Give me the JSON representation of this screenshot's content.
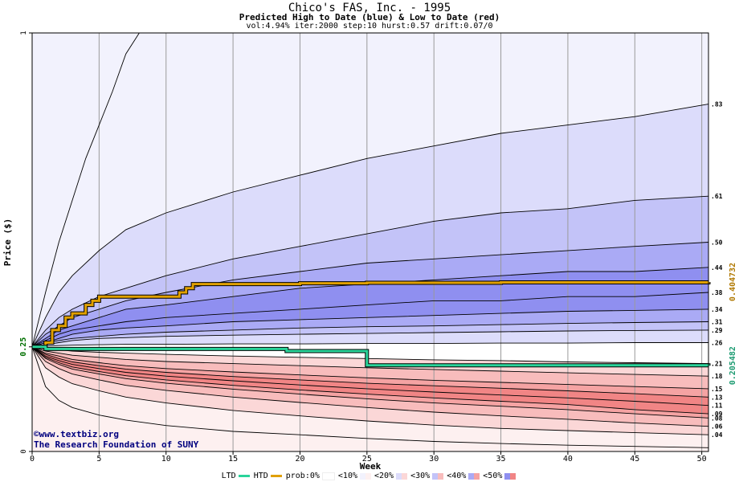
{
  "header": {
    "title": "Chico's FAS, Inc. - 1995",
    "subtitle": "Predicted High to Date (blue) &  Low to Date (red)",
    "params": "vol:4.94% iter:2000 step:10 hurst:0.57 drift:0.07/0"
  },
  "watermark": {
    "line1": "©www.textbiz.org",
    "line2": "The Research Foundation of SUNY"
  },
  "legend": {
    "ltd": "LTD",
    "htd": "HTD",
    "prob": "prob:0%",
    "bands": [
      "<10%",
      "<20%",
      "<30%",
      "<40%",
      "<50%"
    ],
    "ltd_color": "#2ad49a",
    "htd_color": "#e0a000"
  },
  "chart_data": {
    "type": "area",
    "xlabel": "Week",
    "ylabel": "Price ($)",
    "xlim": [
      0,
      50.5
    ],
    "ylim": [
      0,
      1
    ],
    "x_ticks": [
      0,
      5,
      10,
      15,
      20,
      25,
      30,
      35,
      40,
      45,
      50
    ],
    "y_ticks": [
      {
        "value": 0,
        "label": "0"
      },
      {
        "value": 0.25,
        "label": "0.25"
      },
      {
        "value": 1,
        "label": "1"
      }
    ],
    "start_price": 0.25,
    "grid": true,
    "colors": {
      "blue_bands": [
        "#f2f2fd",
        "#dcdcfb",
        "#c3c3f8",
        "#aaaaf5",
        "#8f8ff0"
      ],
      "red_bands": [
        "#fdf0f0",
        "#fbd7d7",
        "#f8bcbc",
        "#f5a3a3",
        "#f18585"
      ],
      "htd_line": "#e0a000",
      "ltd_line": "#2ad49a"
    },
    "x": [
      0,
      1,
      2,
      3,
      5,
      7,
      10,
      15,
      20,
      25,
      30,
      35,
      40,
      45,
      50.5
    ],
    "high_percentile_curves": [
      {
        "end_label": ".83",
        "values": [
          0.25,
          0.32,
          0.38,
          0.42,
          0.48,
          0.53,
          0.57,
          0.62,
          0.66,
          0.7,
          0.73,
          0.76,
          0.78,
          0.8,
          0.83
        ]
      },
      {
        "end_label": ".61",
        "values": [
          0.25,
          0.29,
          0.32,
          0.34,
          0.37,
          0.39,
          0.42,
          0.46,
          0.49,
          0.52,
          0.55,
          0.57,
          0.58,
          0.6,
          0.61
        ]
      },
      {
        "end_label": ".50",
        "values": [
          0.25,
          0.28,
          0.3,
          0.32,
          0.34,
          0.36,
          0.38,
          0.41,
          0.43,
          0.45,
          0.46,
          0.47,
          0.48,
          0.49,
          0.5
        ]
      },
      {
        "end_label": ".44",
        "values": [
          0.25,
          0.27,
          0.29,
          0.3,
          0.32,
          0.34,
          0.35,
          0.37,
          0.39,
          0.4,
          0.41,
          0.42,
          0.43,
          0.43,
          0.44
        ]
      },
      {
        "end_label": ".38",
        "values": [
          0.25,
          0.265,
          0.28,
          0.29,
          0.3,
          0.31,
          0.32,
          0.33,
          0.34,
          0.35,
          0.36,
          0.36,
          0.37,
          0.37,
          0.38
        ]
      },
      {
        "end_label": ".34",
        "values": [
          0.25,
          0.26,
          0.27,
          0.28,
          0.29,
          0.295,
          0.3,
          0.31,
          0.315,
          0.32,
          0.325,
          0.33,
          0.335,
          0.337,
          0.34
        ]
      },
      {
        "end_label": ".31",
        "values": [
          0.25,
          0.26,
          0.265,
          0.27,
          0.275,
          0.28,
          0.285,
          0.29,
          0.295,
          0.298,
          0.3,
          0.303,
          0.306,
          0.308,
          0.31
        ]
      },
      {
        "end_label": ".29",
        "values": [
          0.25,
          0.255,
          0.26,
          0.265,
          0.27,
          0.272,
          0.275,
          0.278,
          0.28,
          0.282,
          0.284,
          0.286,
          0.288,
          0.289,
          0.29
        ]
      },
      {
        "end_label": ".26",
        "values": [
          0.25,
          0.252,
          0.253,
          0.254,
          0.255,
          0.256,
          0.256,
          0.257,
          0.257,
          0.258,
          0.258,
          0.259,
          0.259,
          0.26,
          0.26
        ]
      }
    ],
    "low_percentile_curves": [
      {
        "end_label": ".21",
        "values": [
          0.25,
          0.245,
          0.243,
          0.24,
          0.237,
          0.235,
          0.232,
          0.228,
          0.225,
          0.222,
          0.219,
          0.217,
          0.214,
          0.212,
          0.21
        ]
      },
      {
        "end_label": ".18",
        "values": [
          0.25,
          0.24,
          0.235,
          0.23,
          0.225,
          0.22,
          0.215,
          0.21,
          0.205,
          0.2,
          0.196,
          0.192,
          0.188,
          0.184,
          0.18
        ]
      },
      {
        "end_label": ".15",
        "values": [
          0.25,
          0.235,
          0.228,
          0.22,
          0.212,
          0.205,
          0.198,
          0.19,
          0.183,
          0.176,
          0.17,
          0.165,
          0.16,
          0.155,
          0.15
        ]
      },
      {
        "end_label": ".13",
        "values": [
          0.25,
          0.232,
          0.222,
          0.214,
          0.205,
          0.197,
          0.189,
          0.179,
          0.171,
          0.163,
          0.157,
          0.151,
          0.145,
          0.138,
          0.13
        ]
      },
      {
        "end_label": ".11",
        "values": [
          0.25,
          0.228,
          0.217,
          0.208,
          0.198,
          0.189,
          0.18,
          0.169,
          0.159,
          0.15,
          0.142,
          0.135,
          0.128,
          0.12,
          0.11
        ]
      },
      {
        "end_label": ".09",
        "values": [
          0.25,
          0.225,
          0.212,
          0.202,
          0.191,
          0.181,
          0.171,
          0.158,
          0.147,
          0.137,
          0.128,
          0.12,
          0.112,
          0.1,
          0.09
        ]
      },
      {
        "end_label": ".08",
        "values": [
          0.25,
          0.222,
          0.208,
          0.197,
          0.185,
          0.174,
          0.163,
          0.149,
          0.137,
          0.126,
          0.116,
          0.108,
          0.1,
          0.09,
          0.08
        ]
      },
      {
        "end_label": ".06",
        "values": [
          0.25,
          0.215,
          0.198,
          0.185,
          0.171,
          0.158,
          0.146,
          0.13,
          0.117,
          0.105,
          0.094,
          0.085,
          0.077,
          0.068,
          0.06
        ]
      },
      {
        "end_label": ".04",
        "values": [
          0.25,
          0.2,
          0.178,
          0.162,
          0.145,
          0.13,
          0.116,
          0.098,
          0.085,
          0.073,
          0.063,
          0.055,
          0.05,
          0.045,
          0.04
        ]
      }
    ],
    "max_curve": {
      "x": [
        0,
        1,
        2,
        3,
        4,
        5,
        6,
        7,
        8
      ],
      "values": [
        0.25,
        0.38,
        0.5,
        0.6,
        0.7,
        0.78,
        0.86,
        0.95,
        1.0
      ]
    },
    "min_curve": {
      "x": [
        0,
        1,
        2,
        3,
        5,
        7,
        10,
        15,
        20,
        25,
        30,
        35,
        40,
        45,
        50.5
      ],
      "values": [
        0.25,
        0.155,
        0.122,
        0.105,
        0.087,
        0.075,
        0.062,
        0.048,
        0.04,
        0.031,
        0.024,
        0.019,
        0.015,
        0.012,
        0.009
      ]
    },
    "htd_series": {
      "name": "HTD",
      "end_label": "0.404732",
      "x": [
        0,
        1,
        1.5,
        2,
        2.5,
        3,
        4,
        4.5,
        5,
        7,
        10,
        11,
        11.5,
        12,
        15,
        20,
        25,
        30,
        35,
        40,
        45,
        50.5
      ],
      "values": [
        0.25,
        0.26,
        0.29,
        0.3,
        0.32,
        0.33,
        0.35,
        0.36,
        0.37,
        0.37,
        0.37,
        0.38,
        0.39,
        0.4,
        0.4,
        0.402,
        0.403,
        0.403,
        0.404,
        0.404,
        0.404,
        0.405
      ]
    },
    "ltd_series": {
      "name": "LTD",
      "end_label": "0.205482",
      "x": [
        0,
        1,
        10,
        18.5,
        19,
        24.8,
        25,
        50.5
      ],
      "values": [
        0.25,
        0.245,
        0.245,
        0.245,
        0.24,
        0.24,
        0.206,
        0.205
      ]
    }
  }
}
